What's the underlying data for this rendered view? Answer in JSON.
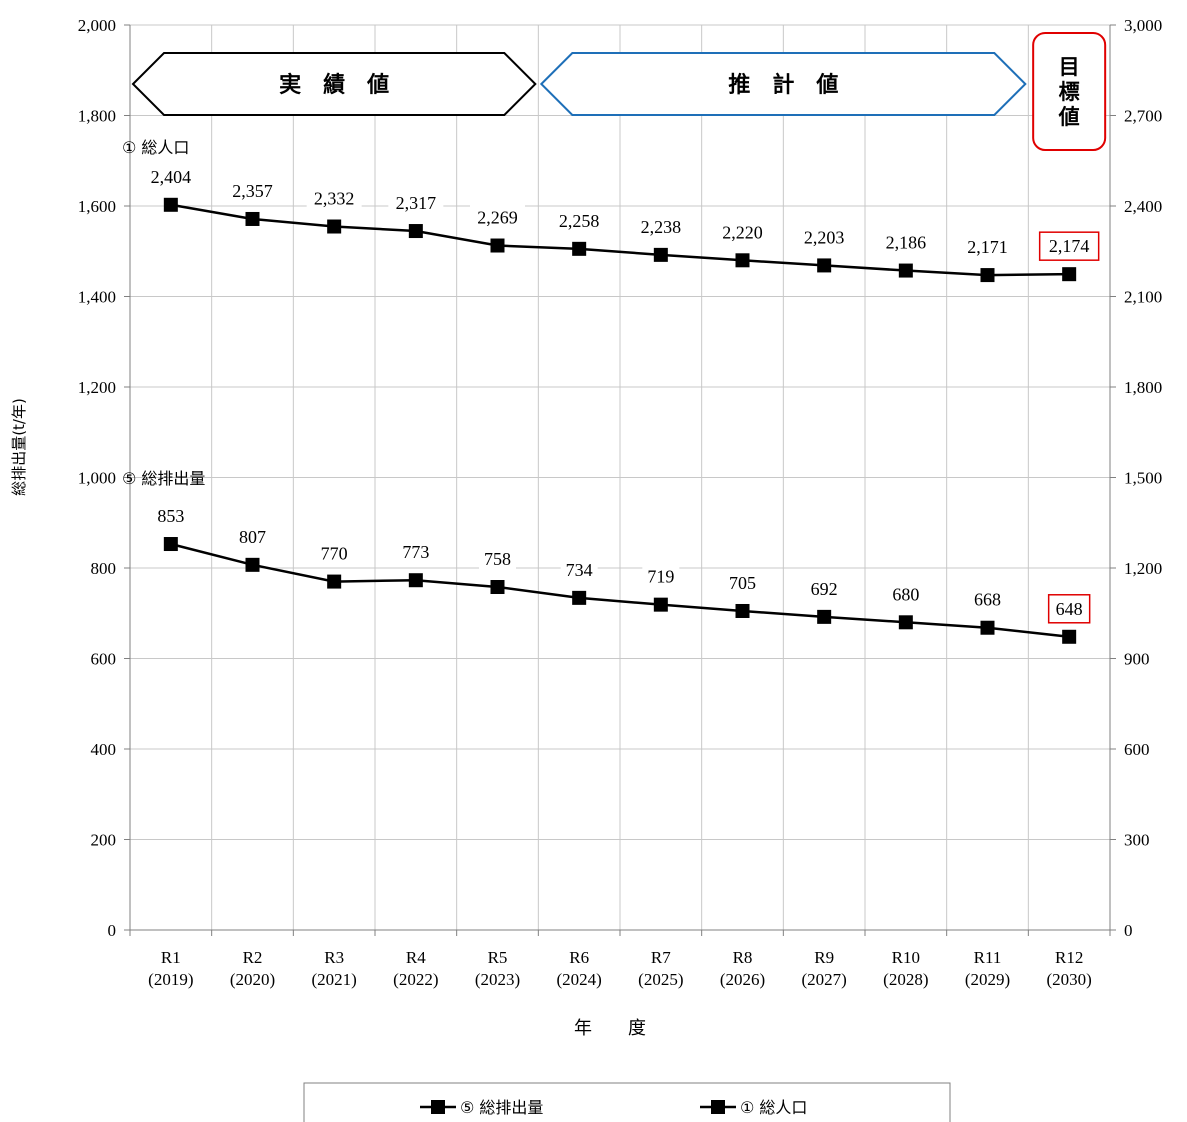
{
  "chart_data": {
    "type": "line",
    "categories": [
      "R1\n(2019)",
      "R2\n(2020)",
      "R3\n(2021)",
      "R4\n(2022)",
      "R5\n(2023)",
      "R6\n(2024)",
      "R7\n(2025)",
      "R8\n(2026)",
      "R9\n(2027)",
      "R10\n(2028)",
      "R11\n(2029)",
      "R12\n(2030)"
    ],
    "series": [
      {
        "name": "⑤ 総排出量",
        "axis": "left",
        "values": [
          853,
          807,
          770,
          773,
          758,
          734,
          719,
          705,
          692,
          680,
          668,
          648
        ],
        "labels": [
          "853",
          "807",
          "770",
          "773",
          "758",
          "734",
          "719",
          "705",
          "692",
          "680",
          "668",
          "648"
        ],
        "color": "#000000"
      },
      {
        "name": "① 総人口",
        "axis": "right",
        "values": [
          2404,
          2357,
          2332,
          2317,
          2269,
          2258,
          2238,
          2220,
          2203,
          2186,
          2171,
          2174
        ],
        "labels": [
          "2,404",
          "2,357",
          "2,332",
          "2,317",
          "2,269",
          "2,258",
          "2,238",
          "2,220",
          "2,203",
          "2,186",
          "2,171",
          "2,174"
        ],
        "color": "#000000"
      }
    ],
    "series_tags": [
      "⑤ 総排出量",
      "① 総人口"
    ],
    "xlabel": "年　　度",
    "ylabel": "総排出量(t/年)",
    "ylim": [
      0,
      2000
    ],
    "y_ticks": [
      "0",
      "200",
      "400",
      "600",
      "800",
      "1,000",
      "1,200",
      "1,400",
      "1,600",
      "1,800",
      "2,000"
    ],
    "y2lim": [
      0,
      3000
    ],
    "y2_ticks": [
      "0",
      "300",
      "600",
      "900",
      "1,200",
      "1,500",
      "1,800",
      "2,100",
      "2,400",
      "2,700",
      "3,000"
    ],
    "grid": true,
    "legend": "bottom",
    "highlight_color": "#e00000",
    "banners": [
      {
        "text": "実　績　値",
        "color": "#000000",
        "from": 0,
        "to": 5
      },
      {
        "text": "推　計　値",
        "color": "#1e6fb8",
        "from": 5,
        "to": 11
      }
    ],
    "target_box": {
      "text": "目標値",
      "color": "#e00000",
      "category": 11
    }
  }
}
